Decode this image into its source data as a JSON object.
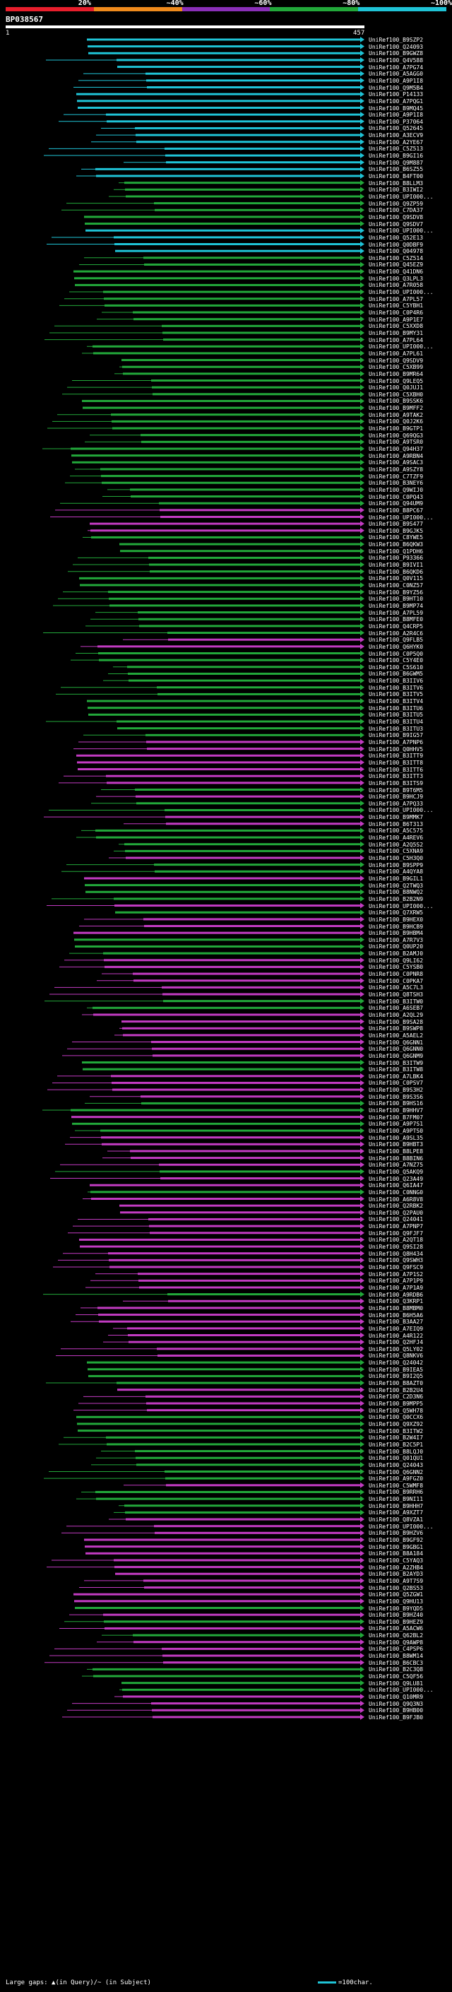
{
  "scale": {
    "labels": [
      "20%",
      "~40%",
      "~60%",
      "~80%",
      "~100%"
    ],
    "colors": [
      "#e81e2c",
      "#ef8a1c",
      "#8a2fb8",
      "#22a83a",
      "#1fc3d6"
    ]
  },
  "query": {
    "name": "BP038567",
    "start": "1",
    "end": "457"
  },
  "legend": {
    "text": "Large gaps: ▲(in Query)/~ (in Subject)",
    "scale_text": "=100char."
  },
  "hits": [
    {
      "id": "UniRef100_B9SZP2",
      "c": "cyan"
    },
    {
      "id": "UniRef100_Q24093",
      "c": "cyan"
    },
    {
      "id": "UniRef100_B9GWZ8",
      "c": "cyan"
    },
    {
      "id": "UniRef100_Q4V588",
      "c": "cyan"
    },
    {
      "id": "UniRef100_A7PG74",
      "c": "cyan"
    },
    {
      "id": "UniRef100_A5AGG0",
      "c": "cyan"
    },
    {
      "id": "UniRef100_A9P1I8",
      "c": "cyan"
    },
    {
      "id": "UniRef100_Q9M5B4",
      "c": "cyan"
    },
    {
      "id": "UniRef100_P14133",
      "c": "cyan"
    },
    {
      "id": "UniRef100_A7PQG1",
      "c": "cyan"
    },
    {
      "id": "UniRef100_B9MQ45",
      "c": "cyan"
    },
    {
      "id": "UniRef100_A9P1I8",
      "c": "cyan"
    },
    {
      "id": "UniRef100_P37064",
      "c": "cyan"
    },
    {
      "id": "UniRef100_Q52645",
      "c": "cyan"
    },
    {
      "id": "UniRef100_A3ECV9",
      "c": "cyan"
    },
    {
      "id": "UniRef100_A2YE67",
      "c": "cyan"
    },
    {
      "id": "UniRef100_C5Z513",
      "c": "cyan"
    },
    {
      "id": "UniRef100_B9GI16",
      "c": "cyan"
    },
    {
      "id": "UniRef100_Q9M887",
      "c": "cyan"
    },
    {
      "id": "UniRef100_B6SZ55",
      "c": "cyan"
    },
    {
      "id": "UniRef100_B4FT00",
      "c": "cyan"
    },
    {
      "id": "UniRef100_B8LLM3",
      "c": "green"
    },
    {
      "id": "UniRef100_B3IWI2",
      "c": "green"
    },
    {
      "id": "UniRef100_UPI000...",
      "c": "green"
    },
    {
      "id": "UniRef100_Q9ZP59",
      "c": "green"
    },
    {
      "id": "UniRef100_C7DA37",
      "c": "green"
    },
    {
      "id": "UniRef100_Q9SDV8",
      "c": "green"
    },
    {
      "id": "UniRef100_Q9SDV7",
      "c": "green"
    },
    {
      "id": "UniRef100_UPI000...",
      "c": "cyan"
    },
    {
      "id": "UniRef100_Q52E13",
      "c": "cyan"
    },
    {
      "id": "UniRef100_Q0DBF9",
      "c": "cyan"
    },
    {
      "id": "UniRef100_Q04978",
      "c": "cyan"
    },
    {
      "id": "UniRef100_C5Z514",
      "c": "green"
    },
    {
      "id": "UniRef100_Q45EZ9",
      "c": "green"
    },
    {
      "id": "UniRef100_Q41DN6",
      "c": "green"
    },
    {
      "id": "UniRef100_Q3LPL3",
      "c": "green"
    },
    {
      "id": "UniRef100_A7R058",
      "c": "green"
    },
    {
      "id": "UniRef100_UPI000...",
      "c": "green"
    },
    {
      "id": "UniRef100_A7PL57",
      "c": "green"
    },
    {
      "id": "UniRef100_C5YBH1",
      "c": "green"
    },
    {
      "id": "UniRef100_C0P4R6",
      "c": "green"
    },
    {
      "id": "UniRef100_A9P1E7",
      "c": "green"
    },
    {
      "id": "UniRef100_C5XXD8",
      "c": "green"
    },
    {
      "id": "UniRef100_B9MY31",
      "c": "green"
    },
    {
      "id": "UniRef100_A7PL64",
      "c": "green"
    },
    {
      "id": "UniRef100_UPI000...",
      "c": "green"
    },
    {
      "id": "UniRef100_A7PL61",
      "c": "green"
    },
    {
      "id": "UniRef100_Q9SDV9",
      "c": "green"
    },
    {
      "id": "UniRef100_C5XB99",
      "c": "green"
    },
    {
      "id": "UniRef100_B9MR64",
      "c": "green"
    },
    {
      "id": "UniRef100_Q9LEQ5",
      "c": "green"
    },
    {
      "id": "UniRef100_Q0JUJ1",
      "c": "green"
    },
    {
      "id": "UniRef100_C5XBH0",
      "c": "green"
    },
    {
      "id": "UniRef100_B9SSK6",
      "c": "green"
    },
    {
      "id": "UniRef100_B9MFF2",
      "c": "green"
    },
    {
      "id": "UniRef100_A9TAK2",
      "c": "green"
    },
    {
      "id": "UniRef100_Q0J2K6",
      "c": "green"
    },
    {
      "id": "UniRef100_B9GTP1",
      "c": "green"
    },
    {
      "id": "UniRef100_Q69QG3",
      "c": "green"
    },
    {
      "id": "UniRef100_A9TSR0",
      "c": "green"
    },
    {
      "id": "UniRef100_Q94H37",
      "c": "green"
    },
    {
      "id": "UniRef100_A9RBN4",
      "c": "green"
    },
    {
      "id": "UniRef100_A9SAC3",
      "c": "green"
    },
    {
      "id": "UniRef100_A9SZY8",
      "c": "green"
    },
    {
      "id": "UniRef100_C7TZF9",
      "c": "green"
    },
    {
      "id": "UniRef100_B3NEY6",
      "c": "green"
    },
    {
      "id": "UniRef100_Q9WIJ0",
      "c": "green"
    },
    {
      "id": "UniRef100_C0PQ43",
      "c": "green"
    },
    {
      "id": "UniRef100_Q94UM9",
      "c": "green"
    },
    {
      "id": "UniRef100_B8PC67",
      "c": "magenta"
    },
    {
      "id": "UniRef100_UPI000...",
      "c": "magenta"
    },
    {
      "id": "UniRef100_B9S477",
      "c": "magenta"
    },
    {
      "id": "UniRef100_B9GJK5",
      "c": "magenta"
    },
    {
      "id": "UniRef100_C8YWE5",
      "c": "green"
    },
    {
      "id": "UniRef100_B6QKW3",
      "c": "green"
    },
    {
      "id": "UniRef100_Q1PDH6",
      "c": "green"
    },
    {
      "id": "UniRef100_P93366",
      "c": "green"
    },
    {
      "id": "UniRef100_B9IVI1",
      "c": "green"
    },
    {
      "id": "UniRef100_B6QKD6",
      "c": "green"
    },
    {
      "id": "UniRef100_Q0V115",
      "c": "green"
    },
    {
      "id": "UniRef100_C0NZ57",
      "c": "green"
    },
    {
      "id": "UniRef100_B9YZ56",
      "c": "green"
    },
    {
      "id": "UniRef100_B9HT10",
      "c": "green"
    },
    {
      "id": "UniRef100_B9MP74",
      "c": "green"
    },
    {
      "id": "UniRef100_A7PL59",
      "c": "green"
    },
    {
      "id": "UniRef100_B8MFE0",
      "c": "green"
    },
    {
      "id": "UniRef100_Q4CRP5",
      "c": "green"
    },
    {
      "id": "UniRef100_A2R4C6",
      "c": "green"
    },
    {
      "id": "UniRef100_Q9FLB5",
      "c": "magenta"
    },
    {
      "id": "UniRef100_Q6HYK0",
      "c": "magenta"
    },
    {
      "id": "UniRef100_C0P5Q0",
      "c": "green"
    },
    {
      "id": "UniRef100_C5Y4E0",
      "c": "green"
    },
    {
      "id": "UniRef100_C5S610",
      "c": "green"
    },
    {
      "id": "UniRef100_B6GWM5",
      "c": "green"
    },
    {
      "id": "UniRef100_B3IIV6",
      "c": "green"
    },
    {
      "id": "UniRef100_B3ITV6",
      "c": "green"
    },
    {
      "id": "UniRef100_B3ITV5",
      "c": "green"
    },
    {
      "id": "UniRef100_B3ITV4",
      "c": "green"
    },
    {
      "id": "UniRef100_B3ITU6",
      "c": "green"
    },
    {
      "id": "UniRef100_B3ITU5",
      "c": "green"
    },
    {
      "id": "UniRef100_B3ITU4",
      "c": "green"
    },
    {
      "id": "UniRef100_B3ITU3",
      "c": "green"
    },
    {
      "id": "UniRef100_B9IG57",
      "c": "green"
    },
    {
      "id": "UniRef100_A7PNP6",
      "c": "magenta"
    },
    {
      "id": "UniRef100_Q0HHV5",
      "c": "magenta"
    },
    {
      "id": "UniRef100_B3ITT9",
      "c": "magenta"
    },
    {
      "id": "UniRef100_B3ITT8",
      "c": "magenta"
    },
    {
      "id": "UniRef100_B3ITT6",
      "c": "magenta"
    },
    {
      "id": "UniRef100_B3ITT3",
      "c": "magenta"
    },
    {
      "id": "UniRef100_B3ITS9",
      "c": "magenta"
    },
    {
      "id": "UniRef100_B9T6M5",
      "c": "green"
    },
    {
      "id": "UniRef100_B9HCJ9",
      "c": "magenta"
    },
    {
      "id": "UniRef100_A7PQ33",
      "c": "green"
    },
    {
      "id": "UniRef100_UPI000...",
      "c": "green"
    },
    {
      "id": "UniRef100_B9MMK7",
      "c": "magenta"
    },
    {
      "id": "UniRef100_B6T313",
      "c": "magenta"
    },
    {
      "id": "UniRef100_A5C575",
      "c": "green"
    },
    {
      "id": "UniRef100_A4REV6",
      "c": "green"
    },
    {
      "id": "UniRef100_A2Q5S2",
      "c": "green"
    },
    {
      "id": "UniRef100_C5XNA9",
      "c": "green"
    },
    {
      "id": "UniRef100_C5H3Q0",
      "c": "magenta"
    },
    {
      "id": "UniRef100_B9SPP9",
      "c": "green"
    },
    {
      "id": "UniRef100_A4QYA8",
      "c": "green"
    },
    {
      "id": "UniRef100_B9GIL1",
      "c": "magenta"
    },
    {
      "id": "UniRef100_Q2TWQ3",
      "c": "green"
    },
    {
      "id": "UniRef100_B8NWQ2",
      "c": "green"
    },
    {
      "id": "UniRef100_B2B2N9",
      "c": "green"
    },
    {
      "id": "UniRef100_UPI000...",
      "c": "magenta"
    },
    {
      "id": "UniRef100_Q7XRW5",
      "c": "green"
    },
    {
      "id": "UniRef100_B9HEX0",
      "c": "magenta"
    },
    {
      "id": "UniRef100_B9HCB9",
      "c": "magenta"
    },
    {
      "id": "UniRef100_B9HBM4",
      "c": "magenta"
    },
    {
      "id": "UniRef100_A7R7V3",
      "c": "green"
    },
    {
      "id": "UniRef100_Q0UP20",
      "c": "green"
    },
    {
      "id": "UniRef100_B2AMJ0",
      "c": "green"
    },
    {
      "id": "UniRef100_Q9LI62",
      "c": "magenta"
    },
    {
      "id": "UniRef100_C5YSB0",
      "c": "magenta"
    },
    {
      "id": "UniRef100_C0PNR8",
      "c": "magenta"
    },
    {
      "id": "UniRef100_C0PKA7",
      "c": "magenta"
    },
    {
      "id": "UniRef100_A5C7L3",
      "c": "magenta"
    },
    {
      "id": "UniRef100_Q8TSH3",
      "c": "magenta"
    },
    {
      "id": "UniRef100_B3ITW0",
      "c": "green"
    },
    {
      "id": "UniRef100_A6SEB7",
      "c": "green"
    },
    {
      "id": "UniRef100_A2QL29",
      "c": "magenta"
    },
    {
      "id": "UniRef100_B9SA28",
      "c": "magenta"
    },
    {
      "id": "UniRef100_B9SWP8",
      "c": "magenta"
    },
    {
      "id": "UniRef100_A5AEL2",
      "c": "magenta"
    },
    {
      "id": "UniRef100_Q6GNN1",
      "c": "magenta"
    },
    {
      "id": "UniRef100_Q6GNN0",
      "c": "magenta"
    },
    {
      "id": "UniRef100_Q6GNM9",
      "c": "magenta"
    },
    {
      "id": "UniRef100_B3ITW9",
      "c": "green"
    },
    {
      "id": "UniRef100_B3ITW8",
      "c": "green"
    },
    {
      "id": "UniRef100_A7LBK4",
      "c": "magenta"
    },
    {
      "id": "UniRef100_C0PSV7",
      "c": "magenta"
    },
    {
      "id": "UniRef100_B9S3H2",
      "c": "magenta"
    },
    {
      "id": "UniRef100_B9S3S6",
      "c": "magenta"
    },
    {
      "id": "UniRef100_B9HS16",
      "c": "green"
    },
    {
      "id": "UniRef100_B9HHV7",
      "c": "green"
    },
    {
      "id": "UniRef100_B7FM07",
      "c": "magenta"
    },
    {
      "id": "UniRef100_A9P7S1",
      "c": "green"
    },
    {
      "id": "UniRef100_A9PTS0",
      "c": "green"
    },
    {
      "id": "UniRef100_A9SL35",
      "c": "magenta"
    },
    {
      "id": "UniRef100_B9HBT3",
      "c": "magenta"
    },
    {
      "id": "UniRef100_B8LPE8",
      "c": "magenta"
    },
    {
      "id": "UniRef100_B8BIN6",
      "c": "magenta"
    },
    {
      "id": "UniRef100_A7NZ75",
      "c": "magenta"
    },
    {
      "id": "UniRef100_Q5AKQ9",
      "c": "green"
    },
    {
      "id": "UniRef100_Q23A49",
      "c": "magenta"
    },
    {
      "id": "UniRef100_Q6IA47",
      "c": "magenta"
    },
    {
      "id": "UniRef100_C0NNG0",
      "c": "green"
    },
    {
      "id": "UniRef100_A6R8V8",
      "c": "magenta"
    },
    {
      "id": "UniRef100_Q2RBK2",
      "c": "magenta"
    },
    {
      "id": "UniRef100_Q2PAU0",
      "c": "magenta"
    },
    {
      "id": "UniRef100_Q24041",
      "c": "magenta"
    },
    {
      "id": "UniRef100_A7PNP7",
      "c": "magenta"
    },
    {
      "id": "UniRef100_Q9FJF7",
      "c": "magenta"
    },
    {
      "id": "UniRef100_A2QT18",
      "c": "magenta"
    },
    {
      "id": "UniRef100_Q9SI28",
      "c": "magenta"
    },
    {
      "id": "UniRef100_Q8H434",
      "c": "magenta"
    },
    {
      "id": "UniRef100_Q9SWH3",
      "c": "magenta"
    },
    {
      "id": "UniRef100_Q9FSC9",
      "c": "magenta"
    },
    {
      "id": "UniRef100_A7P1S2",
      "c": "magenta"
    },
    {
      "id": "UniRef100_A7P1P9",
      "c": "magenta"
    },
    {
      "id": "UniRef100_A7P1A9",
      "c": "magenta"
    },
    {
      "id": "UniRef100_A9RDB6",
      "c": "green"
    },
    {
      "id": "UniRef100_Q3KRP1",
      "c": "magenta"
    },
    {
      "id": "UniRef100_B8MBM0",
      "c": "magenta"
    },
    {
      "id": "UniRef100_B6H5A6",
      "c": "magenta"
    },
    {
      "id": "UniRef100_B3AA27",
      "c": "magenta"
    },
    {
      "id": "UniRef100_A7EIQ9",
      "c": "magenta"
    },
    {
      "id": "UniRef100_A4R122",
      "c": "magenta"
    },
    {
      "id": "UniRef100_Q2HFJ4",
      "c": "magenta"
    },
    {
      "id": "UniRef100_Q5LY02",
      "c": "magenta"
    },
    {
      "id": "UniRef100_Q8NKV6",
      "c": "magenta"
    },
    {
      "id": "UniRef100_Q24042",
      "c": "green"
    },
    {
      "id": "UniRef100_B9IEA5",
      "c": "green"
    },
    {
      "id": "UniRef100_B9I2Q5",
      "c": "green"
    },
    {
      "id": "UniRef100_B8AZT0",
      "c": "green"
    },
    {
      "id": "UniRef100_B2B2U4",
      "c": "magenta"
    },
    {
      "id": "UniRef100_C2D3N6",
      "c": "magenta"
    },
    {
      "id": "UniRef100_B9MPP5",
      "c": "magenta"
    },
    {
      "id": "UniRef100_Q5WH78",
      "c": "magenta"
    },
    {
      "id": "UniRef100_Q0CCX6",
      "c": "green"
    },
    {
      "id": "UniRef100_Q9XZ92",
      "c": "green"
    },
    {
      "id": "UniRef100_B3ITW2",
      "c": "green"
    },
    {
      "id": "UniRef100_B2W4I7",
      "c": "green"
    },
    {
      "id": "UniRef100_B2C5P1",
      "c": "green"
    },
    {
      "id": "UniRef100_B8LQJ0",
      "c": "green"
    },
    {
      "id": "UniRef100_Q01QU1",
      "c": "green"
    },
    {
      "id": "UniRef100_Q24043",
      "c": "green"
    },
    {
      "id": "UniRef100_Q6GNN2",
      "c": "green"
    },
    {
      "id": "UniRef100_A9FGZ0",
      "c": "green"
    },
    {
      "id": "UniRef100_C5WMF8",
      "c": "magenta"
    },
    {
      "id": "UniRef100_B9RRH6",
      "c": "green"
    },
    {
      "id": "UniRef100_B9NI11",
      "c": "green"
    },
    {
      "id": "UniRef100_B9HHH7",
      "c": "green"
    },
    {
      "id": "UniRef100_A9XZT7",
      "c": "green"
    },
    {
      "id": "UniRef100_Q8VZA1",
      "c": "magenta"
    },
    {
      "id": "UniRef100_UPI000...",
      "c": "magenta"
    },
    {
      "id": "UniRef100_B9HZV6",
      "c": "magenta"
    },
    {
      "id": "UniRef100_B9GF92",
      "c": "magenta"
    },
    {
      "id": "UniRef100_B9GBG1",
      "c": "magenta"
    },
    {
      "id": "UniRef100_B8A184",
      "c": "magenta"
    },
    {
      "id": "UniRef100_C5YAQ3",
      "c": "magenta"
    },
    {
      "id": "UniRef100_A2ZHB4",
      "c": "magenta"
    },
    {
      "id": "UniRef100_B2AYD3",
      "c": "magenta"
    },
    {
      "id": "UniRef100_A9T7S9",
      "c": "magenta"
    },
    {
      "id": "UniRef100_Q2BS53",
      "c": "magenta"
    },
    {
      "id": "UniRef100_Q5ZGW1",
      "c": "magenta"
    },
    {
      "id": "UniRef100_Q9HU13",
      "c": "magenta"
    },
    {
      "id": "UniRef100_B9YQD5",
      "c": "green"
    },
    {
      "id": "UniRef100_B9HZ40",
      "c": "magenta"
    },
    {
      "id": "UniRef100_B9HEZ9",
      "c": "green"
    },
    {
      "id": "UniRef100_A5ACW6",
      "c": "magenta"
    },
    {
      "id": "UniRef100_Q62BL2",
      "c": "green"
    },
    {
      "id": "UniRef100_Q9AWP8",
      "c": "magenta"
    },
    {
      "id": "UniRef100_C4PSP6",
      "c": "magenta"
    },
    {
      "id": "UniRef100_B8WM14",
      "c": "magenta"
    },
    {
      "id": "UniRef100_B6CBC3",
      "c": "magenta"
    },
    {
      "id": "UniRef100_B2C3Q8",
      "c": "green"
    },
    {
      "id": "UniRef100_C5QF56",
      "c": "green"
    },
    {
      "id": "UniRef100_Q9LU81",
      "c": "green"
    },
    {
      "id": "UniRef100_UPI000...",
      "c": "green"
    },
    {
      "id": "UniRef100_Q10MR9",
      "c": "magenta"
    },
    {
      "id": "UniRef100_Q9Q3N3",
      "c": "magenta"
    },
    {
      "id": "UniRef100_B9HB00",
      "c": "magenta"
    },
    {
      "id": "UniRef100_B9FJB0",
      "c": "magenta"
    }
  ]
}
